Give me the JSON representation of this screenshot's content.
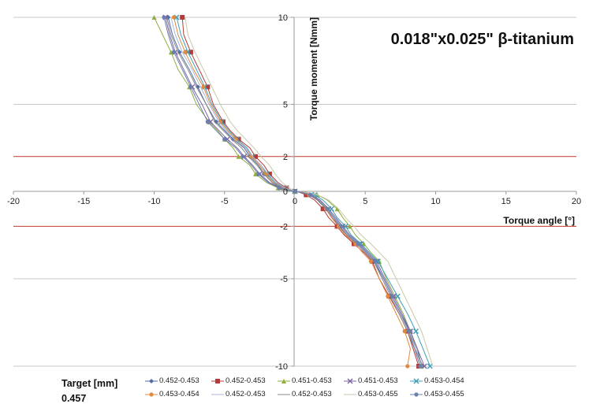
{
  "chart_data": {
    "type": "line",
    "title": "0.018\"x0.025\" β-titanium",
    "xlabel": "Torque angle [°]",
    "ylabel": "Torque moment [Nmm]",
    "xlim": [
      -20,
      20
    ],
    "ylim": [
      -10,
      10
    ],
    "x_ticks": [
      "-20",
      "-15",
      "-10",
      "-5",
      "0",
      "5",
      "10",
      "15",
      "20"
    ],
    "y_ticks": [
      "10",
      "5",
      "2",
      "0",
      "-2",
      "-5",
      "-10"
    ],
    "reference_lines_y": [
      2,
      -2
    ],
    "reference_line_color": "#c0392b",
    "grid": "horizontal",
    "target_label": "Target [mm]",
    "target_value": "0.457",
    "legend_position": "bottom",
    "series": [
      {
        "name": "0.452-0.453",
        "color": "#4f6ea8",
        "marker": "diamond",
        "x": [
          -9.0,
          -8.7,
          -8.2,
          -7.5,
          -6.9,
          -6.3,
          -5.6,
          -5.0,
          -4.4,
          -3.6,
          -3.2,
          -2.6,
          -2.2,
          -1.6,
          -1.0,
          -0.4,
          0,
          0.4,
          1.0,
          1.6,
          2.2,
          2.6,
          3.2,
          3.6,
          4.4,
          5.0,
          5.6,
          6.3,
          6.9,
          7.5,
          8.2,
          8.7,
          9.0
        ],
        "y": [
          10,
          9,
          8,
          7,
          6,
          5,
          4,
          3.5,
          3,
          2.5,
          2,
          1.5,
          1,
          0.5,
          0.2,
          0.05,
          0,
          -0.05,
          -0.2,
          -0.5,
          -1,
          -1.5,
          -2,
          -2.5,
          -3,
          -3.5,
          -4,
          -5,
          -6,
          -7,
          -8,
          -9,
          -10
        ]
      },
      {
        "name": "0.452-0.453",
        "color": "#b33b3b",
        "marker": "square",
        "x": [
          -8.0,
          -7.9,
          -7.4,
          -6.8,
          -6.2,
          -5.8,
          -5.1,
          -4.6,
          -4.0,
          -3.2,
          -2.8,
          -2.2,
          -1.8,
          -1.2,
          -0.6,
          -0.2,
          0,
          0.3,
          0.8,
          1.4,
          2.0,
          2.4,
          3.0,
          3.5,
          4.2,
          4.9,
          5.5,
          6.0,
          6.7,
          7.4,
          8.0,
          8.4,
          8.8
        ],
        "y": [
          10,
          9,
          8,
          7,
          6,
          5,
          4,
          3.5,
          3,
          2.5,
          2,
          1.5,
          1,
          0.5,
          0.2,
          0.05,
          0,
          -0.05,
          -0.2,
          -0.5,
          -1,
          -1.5,
          -2,
          -2.5,
          -3,
          -3.5,
          -4,
          -5,
          -6,
          -7,
          -8,
          -9,
          -10
        ]
      },
      {
        "name": "0.451-0.453",
        "color": "#8fae3f",
        "marker": "triangle",
        "x": [
          -10.0,
          -9.4,
          -8.8,
          -8.3,
          -7.5,
          -7.0,
          -6.1,
          -5.5,
          -5.0,
          -4.4,
          -4.0,
          -3.2,
          -2.8,
          -2.0,
          -1.2,
          -0.6,
          0,
          0.8,
          1.6,
          2.3,
          3.0,
          3.4,
          3.9,
          4.3,
          4.9,
          5.4,
          6.0,
          6.5,
          7.1,
          7.7,
          8.2,
          8.6,
          9.0
        ],
        "y": [
          10,
          9,
          8,
          7,
          6,
          5,
          4,
          3.5,
          3,
          2.5,
          2,
          1.5,
          1,
          0.5,
          0.2,
          0.05,
          0,
          -0.05,
          -0.2,
          -0.5,
          -1,
          -1.5,
          -2,
          -2.5,
          -3,
          -3.5,
          -4,
          -5,
          -6,
          -7,
          -8,
          -9,
          -10
        ]
      },
      {
        "name": "0.451-0.453",
        "color": "#7d64a3",
        "marker": "x",
        "x": [
          -9.2,
          -8.9,
          -8.5,
          -7.9,
          -7.3,
          -6.6,
          -6.0,
          -5.4,
          -4.8,
          -4.1,
          -3.6,
          -3.0,
          -2.5,
          -1.8,
          -1.0,
          -0.4,
          0,
          0.5,
          1.2,
          1.8,
          2.4,
          2.9,
          3.4,
          3.9,
          4.6,
          5.2,
          5.8,
          6.4,
          7.0,
          7.6,
          8.2,
          8.7,
          9.2
        ],
        "y": [
          10,
          9,
          8,
          7,
          6,
          5,
          4,
          3.5,
          3,
          2.5,
          2,
          1.5,
          1,
          0.5,
          0.2,
          0.05,
          0,
          -0.05,
          -0.2,
          -0.5,
          -1,
          -1.5,
          -2,
          -2.5,
          -3,
          -3.5,
          -4,
          -5,
          -6,
          -7,
          -8,
          -9,
          -10
        ]
      },
      {
        "name": "0.453-0.454",
        "color": "#3f9fb8",
        "marker": "x",
        "x": [
          -8.4,
          -8.1,
          -7.6,
          -7.0,
          -6.4,
          -5.9,
          -5.2,
          -4.7,
          -4.1,
          -3.4,
          -3.0,
          -2.4,
          -2.0,
          -1.4,
          -0.8,
          -0.3,
          0,
          0.6,
          1.4,
          2.0,
          2.6,
          3.0,
          3.6,
          4.0,
          4.7,
          5.3,
          5.9,
          6.6,
          7.3,
          8.0,
          8.6,
          9.1,
          9.6
        ],
        "y": [
          10,
          9,
          8,
          7,
          6,
          5,
          4,
          3.5,
          3,
          2.5,
          2,
          1.5,
          1,
          0.5,
          0.2,
          0.05,
          0,
          -0.05,
          -0.2,
          -0.5,
          -1,
          -1.5,
          -2,
          -2.5,
          -3,
          -3.5,
          -4,
          -5,
          -6,
          -7,
          -8,
          -9,
          -10
        ]
      },
      {
        "name": "0.453-0.454",
        "color": "#e08a3c",
        "marker": "circle",
        "x": [
          -8.6,
          -8.3,
          -7.8,
          -7.2,
          -6.5,
          -6.0,
          -5.3,
          -4.8,
          -4.2,
          -3.5,
          -3.1,
          -2.5,
          -2.1,
          -1.5,
          -0.9,
          -0.3,
          0,
          0.4,
          1.0,
          1.6,
          2.2,
          2.6,
          3.1,
          3.6,
          4.3,
          4.8,
          5.4,
          6.0,
          6.6,
          7.2,
          7.8,
          8.2,
          8.0
        ],
        "y": [
          10,
          9,
          8,
          7,
          6,
          5,
          4,
          3.5,
          3,
          2.5,
          2,
          1.5,
          1,
          0.5,
          0.2,
          0.05,
          0,
          -0.05,
          -0.2,
          -0.5,
          -1,
          -1.5,
          -2,
          -2.5,
          -3,
          -3.5,
          -4,
          -5,
          -6,
          -7,
          -8,
          -9,
          -10
        ]
      },
      {
        "name": "0.452-0.453",
        "color": "#a9b7d6",
        "marker": "none",
        "x": [
          -8.8,
          -8.5,
          -8.0,
          -7.3,
          -6.7,
          -6.1,
          -5.4,
          -4.9,
          -4.3,
          -3.5,
          -3.0,
          -2.4,
          -1.9,
          -1.3,
          -0.7,
          -0.2,
          0,
          0.5,
          1.1,
          1.7,
          2.3,
          2.7,
          3.3,
          3.8,
          4.5,
          5.1,
          5.7,
          6.3,
          6.9,
          7.5,
          8.1,
          8.6,
          9.0
        ],
        "y": [
          10,
          9,
          8,
          7,
          6,
          5,
          4,
          3.5,
          3,
          2.5,
          2,
          1.5,
          1,
          0.5,
          0.2,
          0.05,
          0,
          -0.05,
          -0.2,
          -0.5,
          -1,
          -1.5,
          -2,
          -2.5,
          -3,
          -3.5,
          -4,
          -5,
          -6,
          -7,
          -8,
          -9,
          -10
        ]
      },
      {
        "name": "0.452-0.453",
        "color": "#888888",
        "marker": "none",
        "x": [
          -9.1,
          -8.8,
          -8.3,
          -7.6,
          -7.0,
          -6.3,
          -5.7,
          -5.1,
          -4.5,
          -3.8,
          -3.3,
          -2.7,
          -2.2,
          -1.6,
          -0.9,
          -0.3,
          0,
          0.4,
          1.0,
          1.6,
          2.2,
          2.7,
          3.2,
          3.7,
          4.4,
          5.0,
          5.6,
          6.2,
          6.8,
          7.4,
          8.0,
          8.5,
          9.1
        ],
        "y": [
          10,
          9,
          8,
          7,
          6,
          5,
          4,
          3.5,
          3,
          2.5,
          2,
          1.5,
          1,
          0.5,
          0.2,
          0.05,
          0,
          -0.05,
          -0.2,
          -0.5,
          -1,
          -1.5,
          -2,
          -2.5,
          -3,
          -3.5,
          -4,
          -5,
          -6,
          -7,
          -8,
          -9,
          -10
        ]
      },
      {
        "name": "0.453-0.455",
        "color": "#c9c9a8",
        "marker": "none",
        "x": [
          -7.8,
          -7.6,
          -7.1,
          -6.5,
          -5.9,
          -5.3,
          -4.6,
          -4.1,
          -3.5,
          -2.9,
          -2.4,
          -1.8,
          -1.4,
          -0.9,
          -0.4,
          -0.1,
          0,
          0.7,
          1.6,
          2.4,
          3.1,
          3.6,
          4.2,
          4.7,
          5.4,
          6.0,
          6.6,
          7.2,
          7.8,
          8.4,
          9.0,
          9.4,
          9.8
        ],
        "y": [
          10,
          9,
          8,
          7,
          6,
          5,
          4,
          3.5,
          3,
          2.5,
          2,
          1.5,
          1,
          0.5,
          0.2,
          0.05,
          0,
          -0.05,
          -0.2,
          -0.5,
          -1,
          -1.5,
          -2,
          -2.5,
          -3,
          -3.5,
          -4,
          -5,
          -6,
          -7,
          -8,
          -9,
          -10
        ]
      },
      {
        "name": "0.453-0.455",
        "color": "#6a7fb0",
        "marker": "circle",
        "x": [
          -9.3,
          -9.0,
          -8.6,
          -8.0,
          -7.4,
          -6.8,
          -6.2,
          -5.6,
          -5.0,
          -4.2,
          -3.7,
          -3.1,
          -2.6,
          -1.9,
          -1.1,
          -0.5,
          0,
          0.5,
          1.1,
          1.7,
          2.3,
          2.8,
          3.3,
          3.8,
          4.5,
          5.1,
          5.7,
          6.3,
          6.9,
          7.5,
          8.1,
          8.5,
          8.9
        ],
        "y": [
          10,
          9,
          8,
          7,
          6,
          5,
          4,
          3.5,
          3,
          2.5,
          2,
          1.5,
          1,
          0.5,
          0.2,
          0.05,
          0,
          -0.05,
          -0.2,
          -0.5,
          -1,
          -1.5,
          -2,
          -2.5,
          -3,
          -3.5,
          -4,
          -5,
          -6,
          -7,
          -8,
          -9,
          -10
        ]
      }
    ],
    "legend": [
      {
        "label": "0.452-0.453",
        "color": "#4f6ea8",
        "marker": "diamond"
      },
      {
        "label": "0.452-0.453",
        "color": "#b33b3b",
        "marker": "square"
      },
      {
        "label": "0.451-0.453",
        "color": "#8fae3f",
        "marker": "triangle"
      },
      {
        "label": "0.451-0.453",
        "color": "#7d64a3",
        "marker": "x"
      },
      {
        "label": "0.453-0.454",
        "color": "#3f9fb8",
        "marker": "x"
      },
      {
        "label": "0.453-0.454",
        "color": "#e08a3c",
        "marker": "circle"
      },
      {
        "label": "0.452-0.453",
        "color": "#a9b7d6",
        "marker": "none"
      },
      {
        "label": "0.452-0.453",
        "color": "#888888",
        "marker": "none"
      },
      {
        "label": "0.453-0.455",
        "color": "#c9c9a8",
        "marker": "none"
      },
      {
        "label": "0.453-0.455",
        "color": "#6a7fb0",
        "marker": "circle"
      }
    ]
  }
}
